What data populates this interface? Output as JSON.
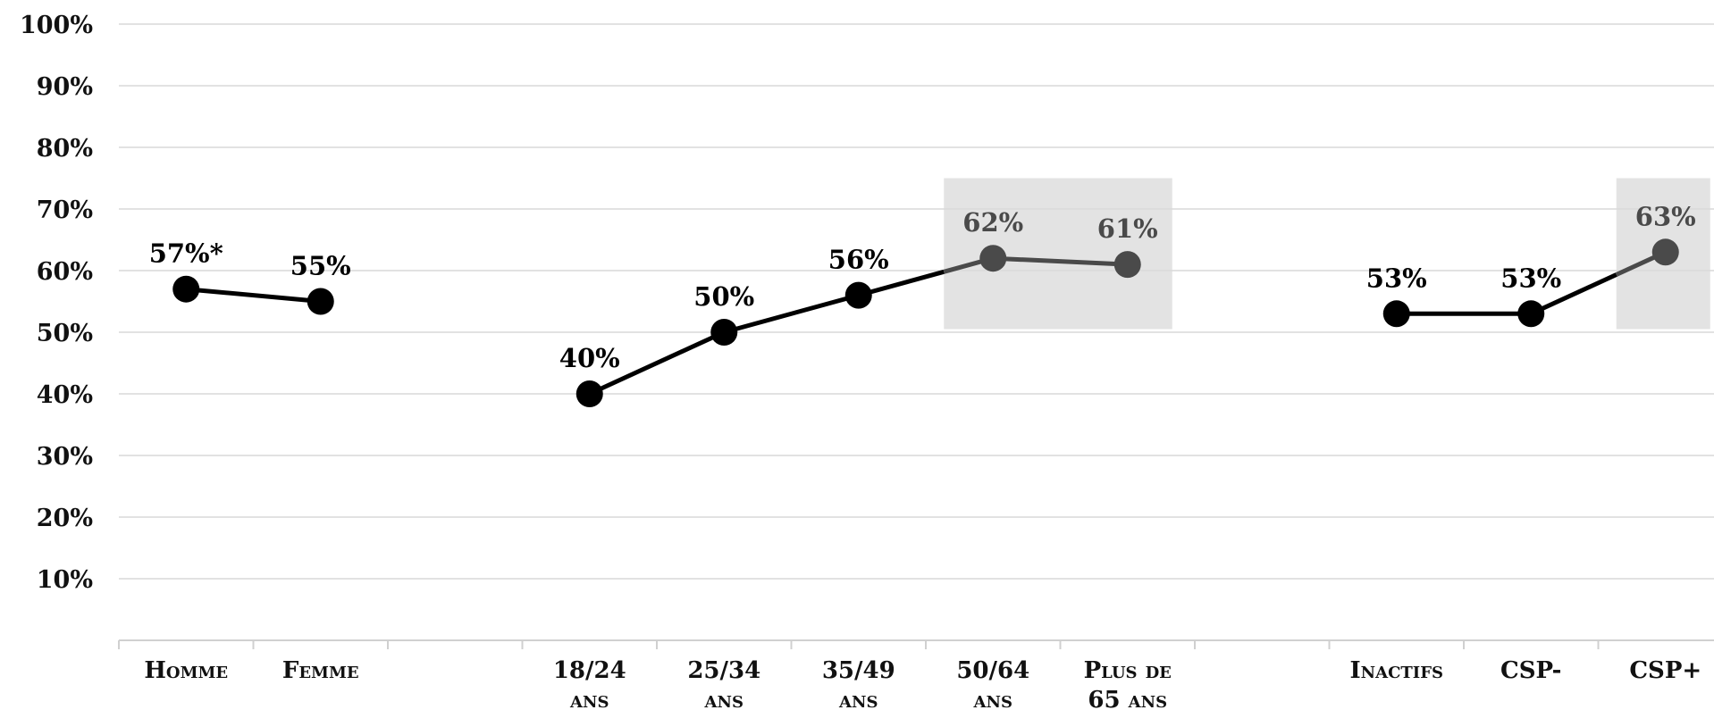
{
  "chart_data": {
    "type": "line",
    "title": "",
    "xlabel": "",
    "ylabel": "",
    "ylim": [
      0,
      100
    ],
    "yticks": [
      "10%",
      "20%",
      "30%",
      "40%",
      "50%",
      "60%",
      "70%",
      "80%",
      "90%",
      "100%"
    ],
    "grid": true,
    "categories": [
      "Homme",
      "Femme",
      "",
      "18/24 ans",
      "25/34 ans",
      "35/49 ans",
      "50/64 ans",
      "Plus de 65 ans",
      "",
      "Inactifs",
      "CSP-",
      "CSP+"
    ],
    "groups": [
      {
        "points": [
          {
            "category": "Homme",
            "value": 57,
            "label": "57%*"
          },
          {
            "category": "Femme",
            "value": 55,
            "label": "55%"
          }
        ]
      },
      {
        "points": [
          {
            "category": "18/24 ans",
            "value": 40,
            "label": "40%"
          },
          {
            "category": "25/34 ans",
            "value": 50,
            "label": "50%"
          },
          {
            "category": "35/49 ans",
            "value": 56,
            "label": "56%"
          },
          {
            "category": "50/64 ans",
            "value": 62,
            "label": "62%",
            "highlight": true
          },
          {
            "category": "Plus de 65 ans",
            "value": 61,
            "label": "61%",
            "highlight": true
          }
        ]
      },
      {
        "points": [
          {
            "category": "Inactifs",
            "value": 53,
            "label": "53%"
          },
          {
            "category": "CSP-",
            "value": 53,
            "label": "53%"
          },
          {
            "category": "CSP+",
            "value": 63,
            "label": "63%",
            "highlight": true
          }
        ]
      }
    ],
    "highlight_bands": [
      {
        "from": "50/64 ans",
        "to": "Plus de 65 ans",
        "ymin": 50.5,
        "ymax": 75
      },
      {
        "from": "CSP+",
        "to": "CSP+",
        "ymin": 50.5,
        "ymax": 75
      }
    ],
    "colors": {
      "line": "#000000",
      "highlight_line": "#4a4a4a",
      "band": "#e3e3e3",
      "grid": "#d9d9d9"
    }
  }
}
